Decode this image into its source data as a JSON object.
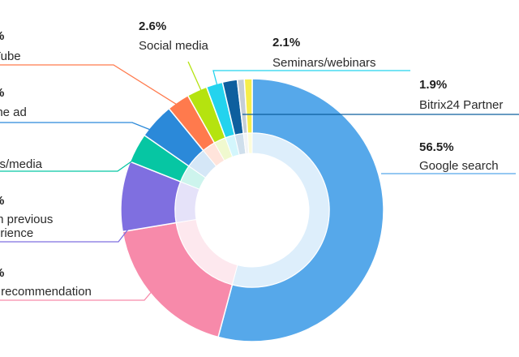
{
  "chart_data": {
    "type": "pie",
    "variant": "donut",
    "slices": [
      {
        "id": "google",
        "percent": "56.5%",
        "value": 56.5,
        "label_lines": [
          "Google search"
        ],
        "color": "#56a8ea"
      },
      {
        "id": "referral",
        "percent": "%",
        "value": 19.0,
        "label_lines": [
          "r recommendation"
        ],
        "color": "#f78aaa"
      },
      {
        "id": "previous",
        "percent": "%",
        "value": 9.0,
        "label_lines": [
          "m previous",
          "erience"
        ],
        "color": "#7f6fe0"
      },
      {
        "id": "press",
        "percent": "",
        "value": 3.8,
        "label_lines": [
          "ss/media"
        ],
        "color": "#06c6a3"
      },
      {
        "id": "online",
        "percent": "%",
        "value": 4.6,
        "label_lines": [
          "ine ad"
        ],
        "color": "#2b89d9"
      },
      {
        "id": "youtube",
        "percent": "%",
        "value": 2.9,
        "label_lines": [
          "Tube"
        ],
        "color": "#ff7a4d"
      },
      {
        "id": "social",
        "percent": "2.6%",
        "value": 2.6,
        "label_lines": [
          "Social media"
        ],
        "color": "#b5e30f"
      },
      {
        "id": "seminars",
        "percent": "2.1%",
        "value": 2.1,
        "label_lines": [
          "Seminars/webinars"
        ],
        "color": "#24d3ee"
      },
      {
        "id": "partner",
        "percent": "1.9%",
        "value": 1.9,
        "label_lines": [
          "Bitrix24 Partner"
        ],
        "color": "#0e5f9e"
      },
      {
        "id": "other1",
        "percent": "",
        "value": 0.9,
        "label_lines": [],
        "color": "#c5ced6"
      },
      {
        "id": "other2",
        "percent": "",
        "value": 1.0,
        "label_lines": [],
        "color": "#f6ee4a"
      }
    ]
  }
}
